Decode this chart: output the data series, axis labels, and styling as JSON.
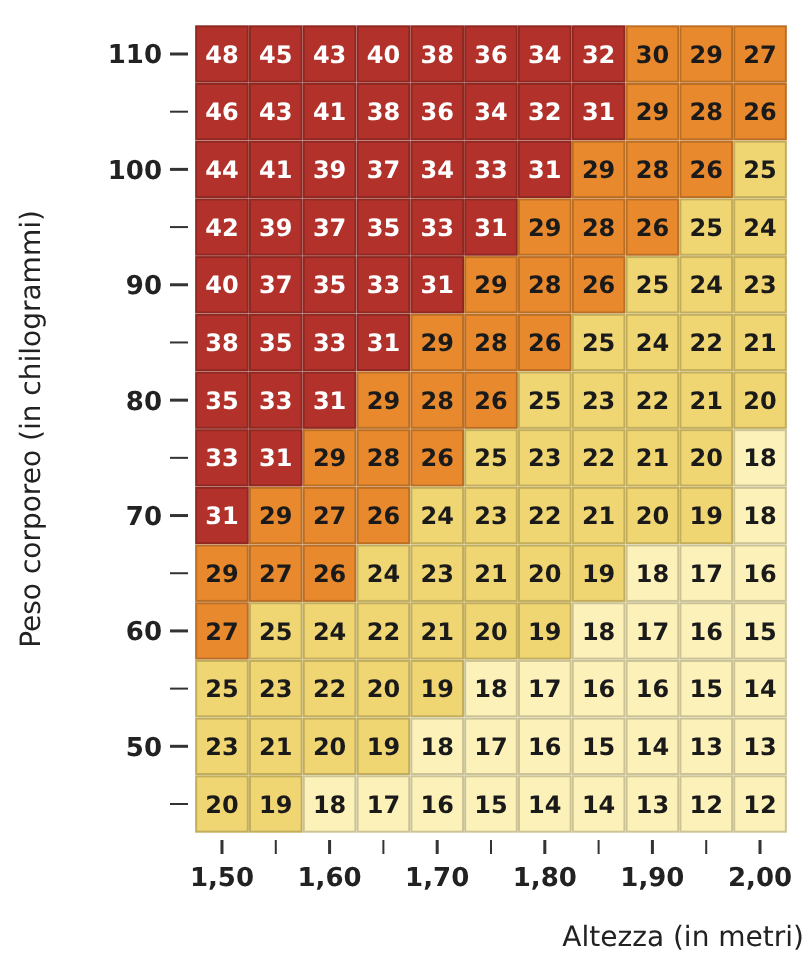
{
  "chart_data": {
    "type": "heatmap",
    "data_labels": true,
    "xlabel": "Altezza (in metri)",
    "ylabel": "Peso corporeo (in chilogrammi)",
    "categories": [
      "1,50",
      null,
      "1,60",
      null,
      "1,70",
      null,
      "1,80",
      null,
      "1,90",
      null,
      "2,00"
    ],
    "y_categories": [
      "110",
      null,
      "100",
      null,
      "90",
      null,
      "80",
      null,
      "70",
      null,
      "60",
      null,
      "50",
      null
    ],
    "cells": [
      [
        48,
        45,
        43,
        40,
        38,
        36,
        34,
        32,
        30,
        29,
        27
      ],
      [
        46,
        43,
        41,
        38,
        36,
        34,
        32,
        31,
        29,
        28,
        26
      ],
      [
        44,
        41,
        39,
        37,
        34,
        33,
        31,
        29,
        28,
        26,
        25
      ],
      [
        42,
        39,
        37,
        35,
        33,
        31,
        29,
        28,
        26,
        25,
        24
      ],
      [
        40,
        37,
        35,
        33,
        31,
        29,
        28,
        26,
        25,
        24,
        23
      ],
      [
        38,
        35,
        33,
        31,
        29,
        28,
        26,
        25,
        24,
        22,
        21
      ],
      [
        35,
        33,
        31,
        29,
        28,
        26,
        25,
        23,
        22,
        21,
        20
      ],
      [
        33,
        31,
        29,
        28,
        26,
        25,
        23,
        22,
        21,
        20,
        18
      ],
      [
        31,
        29,
        27,
        26,
        24,
        23,
        22,
        21,
        20,
        19,
        18
      ],
      [
        29,
        27,
        26,
        24,
        23,
        21,
        20,
        19,
        18,
        17,
        16
      ],
      [
        27,
        25,
        24,
        22,
        21,
        20,
        19,
        18,
        17,
        16,
        15
      ],
      [
        25,
        23,
        22,
        20,
        19,
        18,
        17,
        16,
        16,
        15,
        14
      ],
      [
        23,
        21,
        20,
        19,
        18,
        17,
        16,
        15,
        14,
        13,
        13
      ],
      [
        20,
        19,
        18,
        17,
        16,
        15,
        14,
        14,
        13,
        12,
        12
      ]
    ],
    "colors": [
      [
        "#b2312a",
        "#b2312a",
        "#b2312a",
        "#b2312a",
        "#b2312a",
        "#b2312a",
        "#b2312a",
        "#b2312a",
        "#e8892e",
        "#e8892e",
        "#e8892e"
      ],
      [
        "#b2312a",
        "#b2312a",
        "#b2312a",
        "#b2312a",
        "#b2312a",
        "#b2312a",
        "#b2312a",
        "#b2312a",
        "#e8892e",
        "#e8892e",
        "#e8892e"
      ],
      [
        "#b2312a",
        "#b2312a",
        "#b2312a",
        "#b2312a",
        "#b2312a",
        "#b2312a",
        "#b2312a",
        "#e8892e",
        "#e8892e",
        "#e8892e",
        "#f0d672"
      ],
      [
        "#b2312a",
        "#b2312a",
        "#b2312a",
        "#b2312a",
        "#b2312a",
        "#b2312a",
        "#e8892e",
        "#e8892e",
        "#e8892e",
        "#f0d672",
        "#f0d672"
      ],
      [
        "#b2312a",
        "#b2312a",
        "#b2312a",
        "#b2312a",
        "#b2312a",
        "#e8892e",
        "#e8892e",
        "#e8892e",
        "#f0d672",
        "#f0d672",
        "#f0d672"
      ],
      [
        "#b2312a",
        "#b2312a",
        "#b2312a",
        "#b2312a",
        "#e8892e",
        "#e8892e",
        "#e8892e",
        "#f0d672",
        "#f0d672",
        "#f0d672",
        "#f0d672"
      ],
      [
        "#b2312a",
        "#b2312a",
        "#b2312a",
        "#e8892e",
        "#e8892e",
        "#e8892e",
        "#f0d672",
        "#f0d672",
        "#f0d672",
        "#f0d672",
        "#f0d672"
      ],
      [
        "#b2312a",
        "#b2312a",
        "#e8892e",
        "#e8892e",
        "#e8892e",
        "#f0d672",
        "#f0d672",
        "#f0d672",
        "#f0d672",
        "#f0d672",
        "#fcf1b8"
      ],
      [
        "#b2312a",
        "#e8892e",
        "#e8892e",
        "#e8892e",
        "#f0d672",
        "#f0d672",
        "#f0d672",
        "#f0d672",
        "#f0d672",
        "#f0d672",
        "#fcf1b8"
      ],
      [
        "#e8892e",
        "#e8892e",
        "#e8892e",
        "#f0d672",
        "#f0d672",
        "#f0d672",
        "#f0d672",
        "#f0d672",
        "#fcf1b8",
        "#fcf1b8",
        "#fcf1b8"
      ],
      [
        "#e8892e",
        "#f0d672",
        "#f0d672",
        "#f0d672",
        "#f0d672",
        "#f0d672",
        "#f0d672",
        "#fcf1b8",
        "#fcf1b8",
        "#fcf1b8",
        "#fcf1b8"
      ],
      [
        "#f0d672",
        "#f0d672",
        "#f0d672",
        "#f0d672",
        "#f0d672",
        "#fcf1b8",
        "#fcf1b8",
        "#fcf1b8",
        "#fcf1b8",
        "#fcf1b8",
        "#fcf1b8"
      ],
      [
        "#f0d672",
        "#f0d672",
        "#f0d672",
        "#f0d672",
        "#fcf1b8",
        "#fcf1b8",
        "#fcf1b8",
        "#fcf1b8",
        "#fcf1b8",
        "#fcf1b8",
        "#fcf1b8"
      ],
      [
        "#f0d672",
        "#f0d672",
        "#fcf1b8",
        "#fcf1b8",
        "#fcf1b8",
        "#fcf1b8",
        "#fcf1b8",
        "#fcf1b8",
        "#fcf1b8",
        "#fcf1b8",
        "#fcf1b8"
      ]
    ]
  }
}
